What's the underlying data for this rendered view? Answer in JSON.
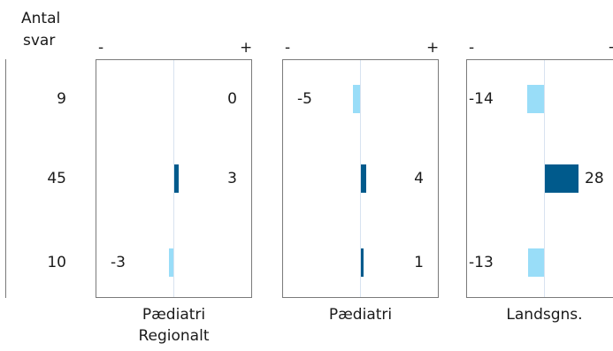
{
  "chart_data": {
    "type": "bar",
    "count_header_line1": "Antal",
    "count_header_line2": "svar",
    "counts": [
      "9",
      "45",
      "10"
    ],
    "sign_minus": "-",
    "sign_plus": "+",
    "colors": {
      "negative": "#99ddf8",
      "positive": "#005a8c",
      "axis": "#d8e3f0",
      "border": "#7a7a7a"
    },
    "panels": [
      {
        "label_lines": [
          "Pædiatri",
          "Regionalt"
        ],
        "values": [
          0,
          3,
          -3
        ],
        "value_labels": [
          "0",
          "3",
          "-3"
        ]
      },
      {
        "label_lines": [
          "Pædiatri"
        ],
        "values": [
          -5,
          4,
          1
        ],
        "value_labels": [
          "-5",
          "4",
          "1"
        ]
      },
      {
        "label_lines": [
          "Landsgns."
        ],
        "values": [
          -14,
          28,
          -13
        ],
        "value_labels": [
          "-14",
          "28",
          "-13"
        ]
      }
    ]
  }
}
